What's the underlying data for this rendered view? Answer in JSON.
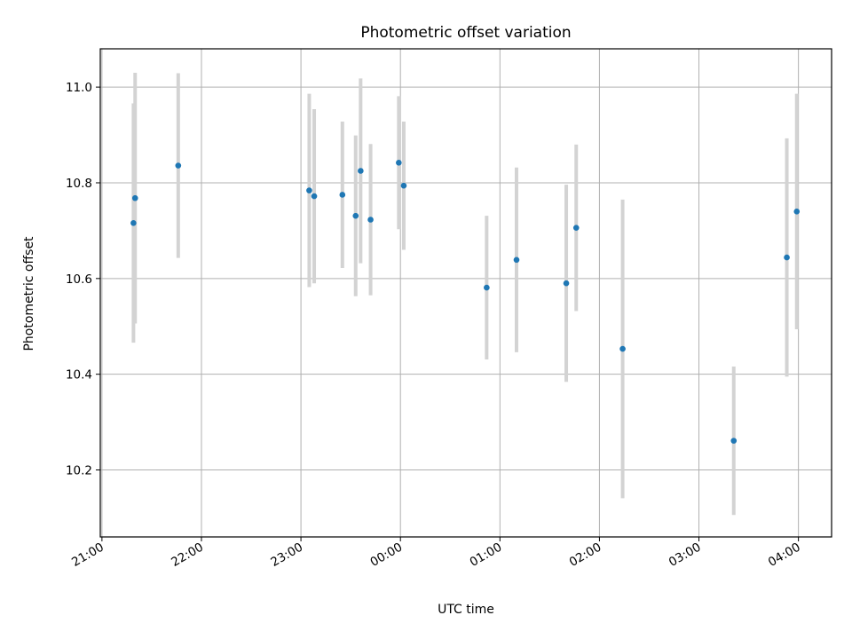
{
  "chart_data": {
    "type": "scatter",
    "title": "Photometric offset variation",
    "xlabel": "UTC time",
    "ylabel": "Photometric offset",
    "grid": true,
    "x_tick_labels": [
      "21:00",
      "22:00",
      "23:00",
      "00:00",
      "01:00",
      "02:00",
      "03:00",
      "04:00"
    ],
    "x_tick_minutes": [
      0,
      60,
      120,
      180,
      240,
      300,
      360,
      420
    ],
    "xlim_minutes": [
      -1,
      440
    ],
    "y_ticks": [
      "10.2",
      "10.4",
      "10.6",
      "10.8",
      "11.0"
    ],
    "ylim": [
      10.06,
      11.08
    ],
    "colors": {
      "point": "#1f77b4",
      "errorbar": "#d3d3d3",
      "grid": "#b0b0b0"
    },
    "series": [
      {
        "points": [
          {
            "time": "21:19",
            "offset": 10.716,
            "error": 0.25
          },
          {
            "time": "21:20",
            "offset": 10.768,
            "error": 0.262
          },
          {
            "time": "21:46",
            "offset": 10.836,
            "error": 0.193
          },
          {
            "time": "23:05",
            "offset": 10.784,
            "error": 0.202
          },
          {
            "time": "23:08",
            "offset": 10.772,
            "error": 0.182
          },
          {
            "time": "23:25",
            "offset": 10.775,
            "error": 0.153
          },
          {
            "time": "23:33",
            "offset": 10.731,
            "error": 0.168
          },
          {
            "time": "23:36",
            "offset": 10.825,
            "error": 0.193
          },
          {
            "time": "23:42",
            "offset": 10.723,
            "error": 0.158
          },
          {
            "time": "23:59",
            "offset": 10.842,
            "error": 0.139
          },
          {
            "time": "00:02",
            "offset": 10.794,
            "error": 0.134
          },
          {
            "time": "00:52",
            "offset": 10.581,
            "error": 0.15
          },
          {
            "time": "01:10",
            "offset": 10.639,
            "error": 0.193
          },
          {
            "time": "01:40",
            "offset": 10.59,
            "error": 0.206
          },
          {
            "time": "01:46",
            "offset": 10.706,
            "error": 0.174
          },
          {
            "time": "02:14",
            "offset": 10.453,
            "error": 0.312
          },
          {
            "time": "03:21",
            "offset": 10.261,
            "error": 0.155
          },
          {
            "time": "03:53",
            "offset": 10.644,
            "error": 0.249
          },
          {
            "time": "03:59",
            "offset": 10.74,
            "error": 0.246
          }
        ]
      }
    ]
  }
}
